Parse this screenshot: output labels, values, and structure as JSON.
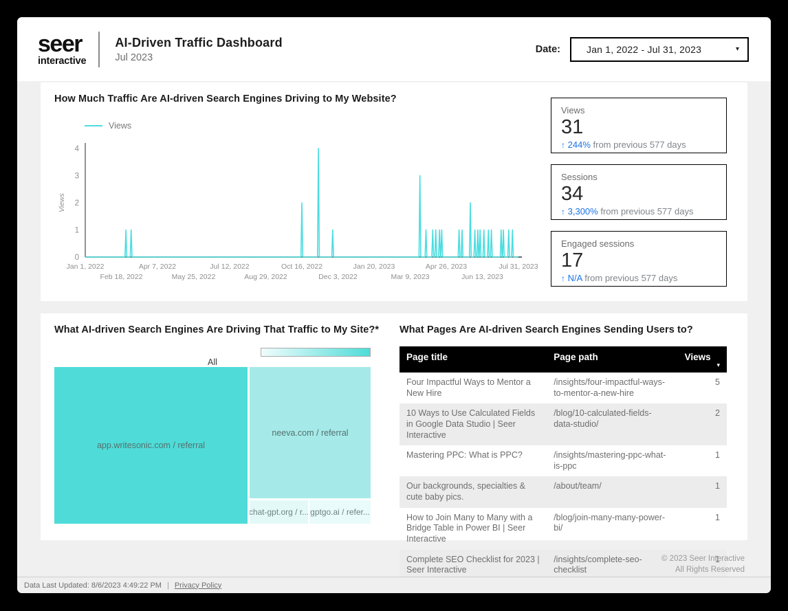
{
  "header": {
    "logo_line1": "seer",
    "logo_line2": "interactive",
    "title": "AI-Driven Traffic Dashboard",
    "subtitle": "Jul 2023",
    "date_label": "Date:",
    "date_value": "Jan 1, 2022 - Jul 31, 2023"
  },
  "traffic_section": {
    "title": "How Much Traffic Are AI-driven Search Engines Driving to My Website?",
    "legend": "Views"
  },
  "scorecards": [
    {
      "label": "Views",
      "value": "31",
      "change": "244%",
      "change_suffix": "from previous 577 days"
    },
    {
      "label": "Sessions",
      "value": "34",
      "change": "3,300%",
      "change_suffix": "from previous 577 days"
    },
    {
      "label": "Engaged sessions",
      "value": "17",
      "change": "N/A",
      "change_suffix": "from previous 577 days"
    }
  ],
  "sources_section": {
    "title": "What AI-driven Search Engines Are Driving That Traffic to My Site?*",
    "root_label": "All",
    "cells": [
      {
        "label": "app.writesonic.com / referral",
        "color": "#4fdcd8"
      },
      {
        "label": "neeva.com / referral",
        "color": "#a5eae8"
      },
      {
        "label": "chat-gpt.org / r...",
        "color": "#e3f9f8"
      },
      {
        "label": "gptgo.ai / refer...",
        "color": "#e9fbfa"
      }
    ]
  },
  "pages_section": {
    "title": "What Pages Are AI-driven Search Engines Sending Users to?",
    "columns": [
      "Page title",
      "Page path",
      "Views"
    ],
    "rows": [
      {
        "title": "Four Impactful Ways to Mentor a New Hire",
        "path": "/insights/four-impactful-ways-to-mentor-a-new-hire",
        "views": "5"
      },
      {
        "title": "10 Ways to Use Calculated Fields in Google Data Studio | Seer Interactive",
        "path": "/blog/10-calculated-fields-data-studio/",
        "views": "2"
      },
      {
        "title": "Mastering PPC: What is PPC?",
        "path": "/insights/mastering-ppc-what-is-ppc",
        "views": "1"
      },
      {
        "title": "Our backgrounds, specialties & cute baby pics.",
        "path": "/about/team/",
        "views": "1"
      },
      {
        "title": "How to Join Many to Many with a Bridge Table in Power BI | Seer Interactive",
        "path": "/blog/join-many-many-power-bi/",
        "views": "1"
      },
      {
        "title": "Complete SEO Checklist for 2023 | Seer Interactive",
        "path": "/insights/complete-seo-checklist",
        "views": "1"
      }
    ]
  },
  "footer": {
    "copyright_line1": "© 2023 Seer Interactive",
    "copyright_line2": "All Rights Reserved",
    "last_updated": "Data Last Updated: 8/6/2023 4:49:22 PM",
    "privacy_link": "Privacy Policy"
  },
  "colors": {
    "accent_teal": "#4adde0",
    "change_blue": "#1a73e8",
    "table_header_bg": "#000000",
    "content_bg": "#f0f0f0"
  },
  "chart_data": [
    {
      "type": "line",
      "title": "How Much Traffic Are AI-driven Search Engines Driving to My Website?",
      "series_name": "Views",
      "ylabel": "Views",
      "ylim": [
        0,
        4
      ],
      "y_ticks": [
        0,
        1,
        2,
        3,
        4
      ],
      "x_start": "Jan 1, 2022",
      "x_end": "Jul 31, 2023",
      "x_range_days": 577,
      "line_color": "#4adde0",
      "grid": false,
      "legend_position": "top-left",
      "x_ticks": [
        {
          "label": "Jan 1, 2022",
          "day": 0,
          "row": 1
        },
        {
          "label": "Feb 18, 2022",
          "day": 48,
          "row": 2
        },
        {
          "label": "Apr 7, 2022",
          "day": 96,
          "row": 1
        },
        {
          "label": "May 25, 2022",
          "day": 144,
          "row": 2
        },
        {
          "label": "Jul 12, 2022",
          "day": 192,
          "row": 1
        },
        {
          "label": "Aug 29, 2022",
          "day": 240,
          "row": 2
        },
        {
          "label": "Oct 16, 2022",
          "day": 288,
          "row": 1
        },
        {
          "label": "Dec 3, 2022",
          "day": 336,
          "row": 2
        },
        {
          "label": "Jan 20, 2023",
          "day": 384,
          "row": 1
        },
        {
          "label": "Mar 9, 2023",
          "day": 432,
          "row": 2
        },
        {
          "label": "Apr 26, 2023",
          "day": 480,
          "row": 1
        },
        {
          "label": "Jun 13, 2023",
          "day": 528,
          "row": 2
        },
        {
          "label": "Jul 31, 2023",
          "day": 576,
          "row": 1
        }
      ],
      "baseline_value": 0,
      "spikes": [
        {
          "day": 54,
          "date": "Feb 24, 2022",
          "value": 1
        },
        {
          "day": 61,
          "date": "Mar 3, 2022",
          "value": 1
        },
        {
          "day": 288,
          "date": "Oct 16, 2022",
          "value": 2
        },
        {
          "day": 310,
          "date": "Nov 7, 2022",
          "value": 4
        },
        {
          "day": 329,
          "date": "Nov 26, 2022",
          "value": 1
        },
        {
          "day": 445,
          "date": "Mar 22, 2023",
          "value": 3
        },
        {
          "day": 453,
          "date": "Mar 30, 2023",
          "value": 1
        },
        {
          "day": 462,
          "date": "Apr 8, 2023",
          "value": 1
        },
        {
          "day": 466,
          "date": "Apr 12, 2023",
          "value": 1
        },
        {
          "day": 471,
          "date": "Apr 17, 2023",
          "value": 1
        },
        {
          "day": 474,
          "date": "Apr 20, 2023",
          "value": 1
        },
        {
          "day": 497,
          "date": "May 13, 2023",
          "value": 1
        },
        {
          "day": 501,
          "date": "May 17, 2023",
          "value": 1
        },
        {
          "day": 512,
          "date": "May 28, 2023",
          "value": 2
        },
        {
          "day": 518,
          "date": "Jun 3, 2023",
          "value": 1
        },
        {
          "day": 522,
          "date": "Jun 7, 2023",
          "value": 1
        },
        {
          "day": 525,
          "date": "Jun 10, 2023",
          "value": 1
        },
        {
          "day": 530,
          "date": "Jun 15, 2023",
          "value": 1
        },
        {
          "day": 536,
          "date": "Jun 21, 2023",
          "value": 1
        },
        {
          "day": 540,
          "date": "Jun 25, 2023",
          "value": 1
        },
        {
          "day": 553,
          "date": "Jul 8, 2023",
          "value": 1
        },
        {
          "day": 556,
          "date": "Jul 11, 2023",
          "value": 1
        },
        {
          "day": 563,
          "date": "Jul 18, 2023",
          "value": 1
        },
        {
          "day": 568,
          "date": "Jul 23, 2023",
          "value": 1
        }
      ],
      "total_views": 31
    },
    {
      "type": "treemap",
      "title": "What AI-driven Search Engines Are Driving That Traffic to My Site?*",
      "root_label": "All",
      "color_scale": [
        "#f0fdfc",
        "#4fdcd8"
      ],
      "items": [
        {
          "label": "app.writesonic.com / referral",
          "relative_area": 0.6
        },
        {
          "label": "neeva.com / referral",
          "relative_area": 0.33
        },
        {
          "label": "chat-gpt.org / r...",
          "relative_area": 0.035
        },
        {
          "label": "gptgo.ai / refer...",
          "relative_area": 0.035
        }
      ]
    }
  ]
}
